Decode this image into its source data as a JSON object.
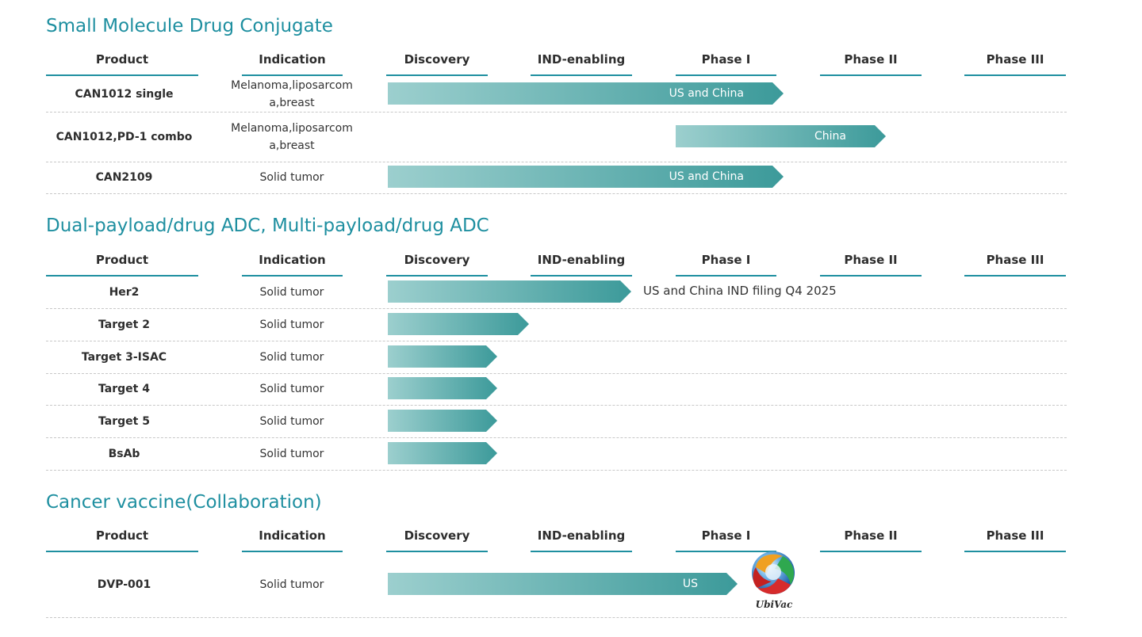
{
  "chart_data": [
    {
      "type": "table",
      "title": "Small Molecule Drug Conjugate",
      "columns": [
        "Product",
        "Indication",
        "Discovery",
        "IND-enabling",
        "Phase I",
        "Phase II",
        "Phase III"
      ],
      "rows": [
        {
          "product": "CAN1012 single",
          "indication": "Melanoma,liposarcoma,breast",
          "start": "Discovery",
          "end_progress": 2.75,
          "label": "US and China",
          "note": ""
        },
        {
          "product": "CAN1012,PD-1 combo",
          "indication": "Melanoma,liposarcoma,breast",
          "start": "Phase I",
          "end_progress": 3.46,
          "label": "China",
          "note": ""
        },
        {
          "product": "CAN2109",
          "indication": "Solid tumor",
          "start": "Discovery",
          "end_progress": 2.75,
          "label": "US and China",
          "note": ""
        }
      ]
    },
    {
      "type": "table",
      "title": "Dual-payload/drug ADC, Multi-payload/drug ADC",
      "columns": [
        "Product",
        "Indication",
        "Discovery",
        "IND-enabling",
        "Phase I",
        "Phase II",
        "Phase III"
      ],
      "rows": [
        {
          "product": "Her2",
          "indication": "Solid tumor",
          "start": "Discovery",
          "end_progress": 1.69,
          "label": "",
          "note": "US and China IND filing Q4 2025"
        },
        {
          "product": "Target 2",
          "indication": "Solid tumor",
          "start": "Discovery",
          "end_progress": 0.98,
          "label": "",
          "note": ""
        },
        {
          "product": "Target 3-ISAC",
          "indication": "Solid tumor",
          "start": "Discovery",
          "end_progress": 0.76,
          "label": "",
          "note": ""
        },
        {
          "product": "Target 4",
          "indication": "Solid tumor",
          "start": "Discovery",
          "end_progress": 0.76,
          "label": "",
          "note": ""
        },
        {
          "product": "Target 5",
          "indication": "Solid tumor",
          "start": "Discovery",
          "end_progress": 0.76,
          "label": "",
          "note": ""
        },
        {
          "product": "BsAb",
          "indication": "Solid tumor",
          "start": "Discovery",
          "end_progress": 0.76,
          "label": "",
          "note": ""
        }
      ]
    },
    {
      "type": "table",
      "title": "Cancer vaccine(Collaboration)",
      "columns": [
        "Product",
        "Indication",
        "Discovery",
        "IND-enabling",
        "Phase I",
        "Phase II",
        "Phase III"
      ],
      "rows": [
        {
          "product": "DVP-001",
          "indication": "Solid tumor",
          "start": "Discovery",
          "end_progress": 2.43,
          "label": "US",
          "note": ""
        }
      ]
    }
  ],
  "partner_logo": {
    "icon": "ubivac-logo-icon",
    "text": "UbiVac"
  },
  "colors": {
    "accent": "#1e8fa0",
    "bar_start": "#9ccfce",
    "bar_end": "#3c9a9a"
  }
}
